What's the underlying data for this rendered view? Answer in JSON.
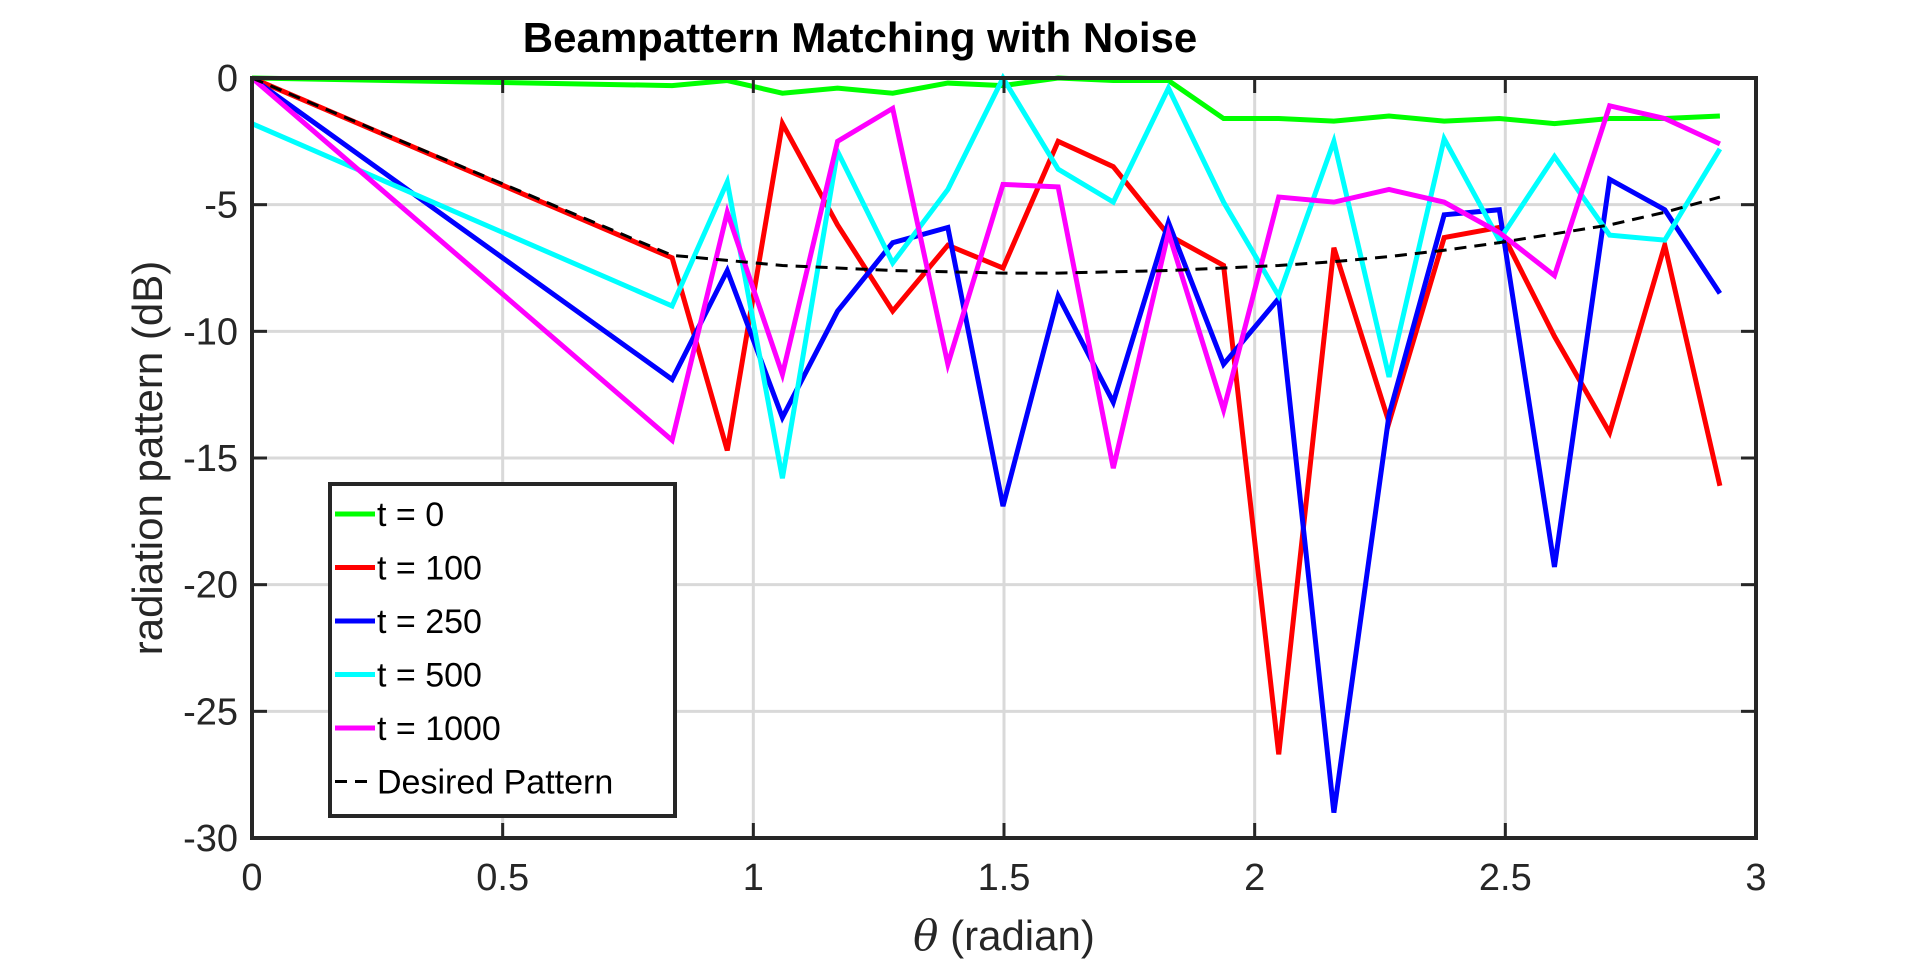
{
  "chart_data": {
    "type": "line",
    "title": "Beampattern Matching with Noise",
    "xlabel_symbol": "θ",
    "xlabel_text": " (radian)",
    "ylabel": "radiation pattern (dB)",
    "xlim": [
      0,
      3
    ],
    "ylim": [
      -30,
      0
    ],
    "xticks": [
      0,
      0.5,
      1,
      1.5,
      2,
      2.5,
      3
    ],
    "xtick_labels": [
      "0",
      "0.5",
      "1",
      "1.5",
      "2",
      "2.5",
      "3"
    ],
    "yticks": [
      0,
      -5,
      -10,
      -15,
      -20,
      -25,
      -30
    ],
    "ytick_labels": [
      "0",
      "-5",
      "-10",
      "-15",
      "-20",
      "-25",
      "-30"
    ],
    "grid": true,
    "legend_position": "bottom-left",
    "x": [
      0,
      0.838,
      0.948,
      1.058,
      1.168,
      1.278,
      1.388,
      1.498,
      1.608,
      1.718,
      1.828,
      1.938,
      2.048,
      2.158,
      2.268,
      2.378,
      2.488,
      2.598,
      2.708,
      2.818,
      2.928
    ],
    "series": [
      {
        "name": "t = 0",
        "color": "#00ff00",
        "dash": "solid",
        "values": [
          0,
          -0.3,
          -0.1,
          -0.6,
          -0.4,
          -0.6,
          -0.2,
          -0.3,
          0,
          -0.1,
          -0.1,
          -1.6,
          -1.6,
          -1.7,
          -1.5,
          -1.7,
          -1.6,
          -1.8,
          -1.6,
          -1.6,
          -1.5
        ]
      },
      {
        "name": "t = 100",
        "color": "#ff0000",
        "dash": "solid",
        "values": [
          0,
          -7.1,
          -14.7,
          -1.8,
          -5.8,
          -9.2,
          -6.6,
          -7.5,
          -2.5,
          -3.5,
          -6.2,
          -7.4,
          -26.7,
          -6.7,
          -13.6,
          -6.3,
          -5.9,
          -10.2,
          -14.0,
          -6.6,
          -16.1
        ]
      },
      {
        "name": "t = 250",
        "color": "#0000ff",
        "dash": "solid",
        "values": [
          0,
          -11.9,
          -7.6,
          -13.4,
          -9.2,
          -6.5,
          -5.9,
          -16.9,
          -8.6,
          -12.8,
          -5.7,
          -11.3,
          -8.7,
          -29.0,
          -13.3,
          -5.4,
          -5.2,
          -19.3,
          -4.0,
          -5.2,
          -8.5
        ]
      },
      {
        "name": "t = 500",
        "color": "#00ffff",
        "dash": "solid",
        "values": [
          -1.8,
          -9.0,
          -4.1,
          -15.8,
          -2.9,
          -7.3,
          -4.4,
          0,
          -3.6,
          -4.9,
          -0.4,
          -4.9,
          -8.6,
          -2.5,
          -11.8,
          -2.4,
          -6.4,
          -3.1,
          -6.2,
          -6.4,
          -2.8
        ]
      },
      {
        "name": "t = 1000",
        "color": "#ff00ff",
        "dash": "solid",
        "values": [
          0,
          -14.3,
          -5.3,
          -11.7,
          -2.5,
          -1.2,
          -11.3,
          -4.2,
          -4.3,
          -15.4,
          -6.1,
          -13.1,
          -4.7,
          -4.9,
          -4.4,
          -4.9,
          -6.1,
          -7.8,
          -1.1,
          -1.6,
          -2.6
        ]
      },
      {
        "name": "Desired Pattern",
        "color": "#000000",
        "dash": "dashed",
        "values": [
          0,
          -7.0,
          -7.2,
          -7.4,
          -7.5,
          -7.6,
          -7.65,
          -7.7,
          -7.7,
          -7.65,
          -7.6,
          -7.5,
          -7.4,
          -7.25,
          -7.05,
          -6.8,
          -6.5,
          -6.15,
          -5.8,
          -5.3,
          -4.7
        ]
      }
    ]
  }
}
